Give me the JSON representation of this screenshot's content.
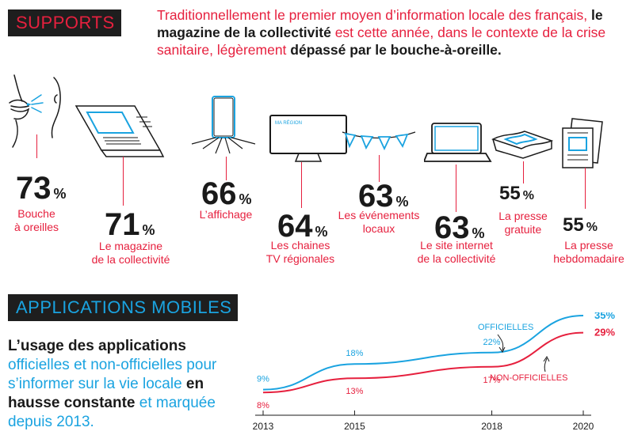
{
  "supports": {
    "title": "SUPPORTS",
    "intro": {
      "p1": "Traditionnellement le premier moyen d’information locale des français,",
      "b1": "le magazine de la collectivité",
      "p2": "est cette année, dans le contexte de la crise sanitaire, légèrement",
      "b2": "dépassé par le bouche-à-oreille."
    },
    "percent_sign": "%",
    "items": [
      {
        "value": "73",
        "label_l1": "Bouche",
        "label_l2": "à oreilles"
      },
      {
        "value": "71",
        "label_l1": "Le magazine",
        "label_l2": "de la collectivité"
      },
      {
        "value": "66",
        "label_l1": "L’affichage",
        "label_l2": ""
      },
      {
        "value": "64",
        "label_l1": "Les chaines",
        "label_l2": "TV régionales"
      },
      {
        "value": "63",
        "label_l1": "Les événements",
        "label_l2": "locaux"
      },
      {
        "value": "63",
        "label_l1": "Le site internet",
        "label_l2": "de la collectivité"
      },
      {
        "value": "55",
        "label_l1": "La presse",
        "label_l2": "gratuite"
      },
      {
        "value": "55",
        "label_l1": "La presse",
        "label_l2": "hebdomadaire"
      }
    ],
    "tv_screen_text": "MA RÉGION"
  },
  "apps": {
    "title": "APPLICATIONS MOBILES",
    "text": {
      "b1": "L’usage des applications",
      "p1": "officielles et non-officielles pour s’informer sur la vie locale",
      "b2": "en hausse constante",
      "p2": "et marquée depuis 2013."
    }
  },
  "colors": {
    "red": "#e6203e",
    "blue": "#1aa3e0",
    "dark": "#1e1e1e"
  },
  "chart_data": {
    "type": "line",
    "title": "",
    "xlabel": "",
    "ylabel": "",
    "x_ticks": [
      "2013",
      "2015",
      "2018",
      "2020"
    ],
    "xlim": [
      2013,
      2020
    ],
    "ylim": [
      0,
      40
    ],
    "grid": false,
    "series": [
      {
        "name": "OFFICIELLES",
        "color": "#1aa3e0",
        "points": [
          {
            "x": 2013,
            "y": 9,
            "label": "9%"
          },
          {
            "x": 2015,
            "y": 18,
            "label": "18%"
          },
          {
            "x": 2018,
            "y": 22,
            "label": "22%"
          },
          {
            "x": 2020,
            "y": 35,
            "label": "35%"
          }
        ]
      },
      {
        "name": "NON-OFFICIELLES",
        "color": "#e6203e",
        "points": [
          {
            "x": 2013,
            "y": 8,
            "label": "8%"
          },
          {
            "x": 2015,
            "y": 13,
            "label": "13%"
          },
          {
            "x": 2018,
            "y": 17,
            "label": "17%"
          },
          {
            "x": 2020,
            "y": 29,
            "label": "29%"
          }
        ]
      }
    ]
  }
}
